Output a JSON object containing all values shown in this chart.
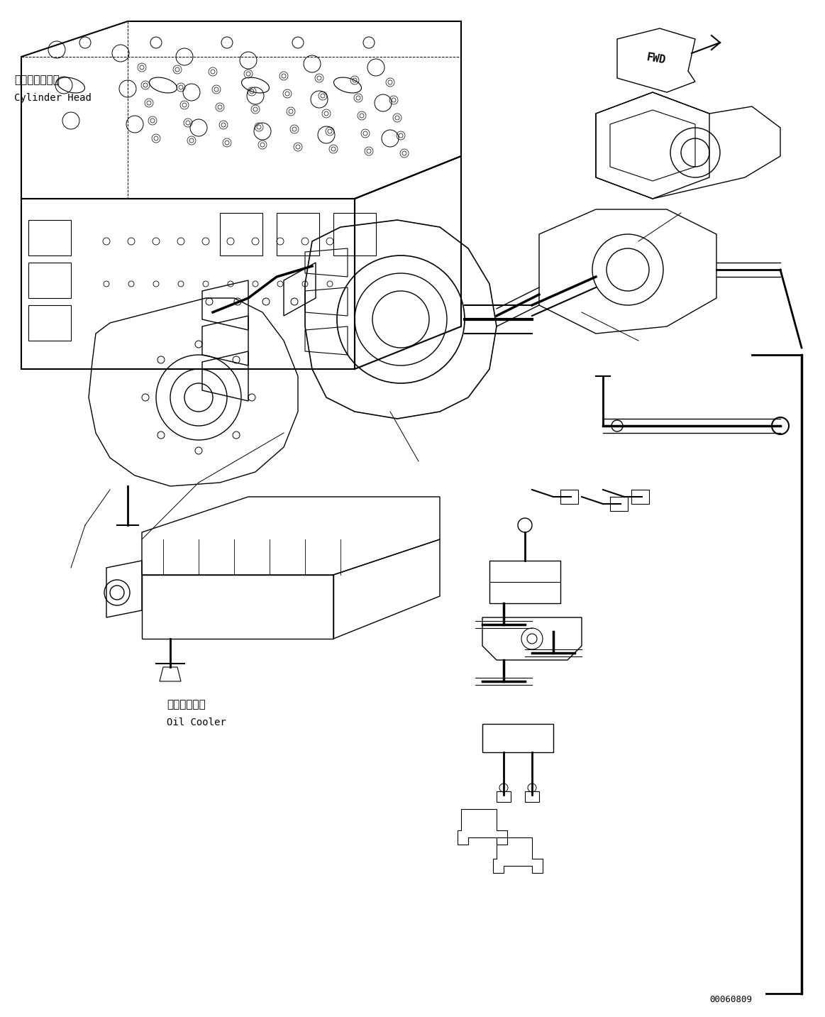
{
  "bg_color": "#ffffff",
  "line_color": "#000000",
  "line_width": 1.0,
  "label_cylinder_head_jp": "シリンダヘッド",
  "label_cylinder_head_en": "Cylinder Head",
  "label_oil_cooler_jp": "オイルクーラ",
  "label_oil_cooler_en": "Oil Cooler",
  "label_fwd": "FWD",
  "part_number": "00060809",
  "fig_width": 11.63,
  "fig_height": 14.33,
  "dpi": 100
}
